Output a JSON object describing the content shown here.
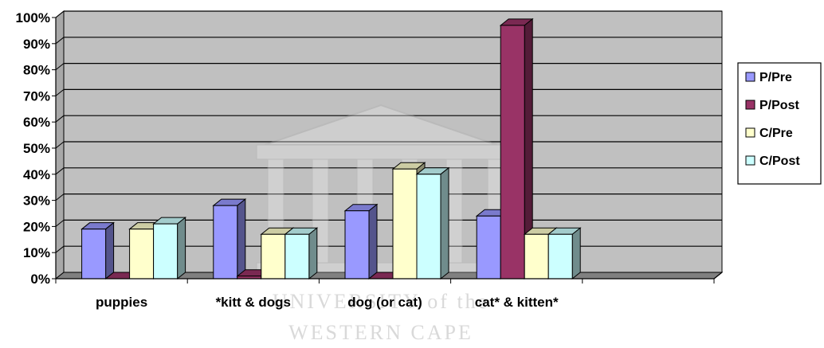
{
  "chart_data": {
    "type": "bar",
    "title": "",
    "xlabel": "",
    "ylabel": "",
    "categories": [
      "puppies",
      "*kitt & dogs",
      "dog (or cat)",
      "cat* & kitten*"
    ],
    "series": [
      {
        "name": "P/Pre",
        "values": [
          19,
          28,
          26,
          24
        ]
      },
      {
        "name": "P/Post",
        "values": [
          0,
          1,
          0,
          97
        ]
      },
      {
        "name": "C/Pre",
        "values": [
          19,
          17,
          42,
          17
        ]
      },
      {
        "name": "C/Post",
        "values": [
          21,
          17,
          40,
          17
        ]
      }
    ],
    "ylim": [
      0,
      100
    ],
    "yticks": [
      "0%",
      "10%",
      "20%",
      "30%",
      "40%",
      "50%",
      "60%",
      "70%",
      "80%",
      "90%",
      "100%"
    ],
    "grid": true,
    "legend_position": "right",
    "style": "3d",
    "colors": {
      "P/Pre": "#9999ff",
      "P/Post": "#993366",
      "C/Pre": "#ffffcc",
      "C/Post": "#ccffff",
      "plot_background": "#c0c0c0"
    }
  },
  "watermark": {
    "line1": "UNIVERSITY of the",
    "line2": "WESTERN CAPE",
    "icon": "university-building-icon"
  }
}
